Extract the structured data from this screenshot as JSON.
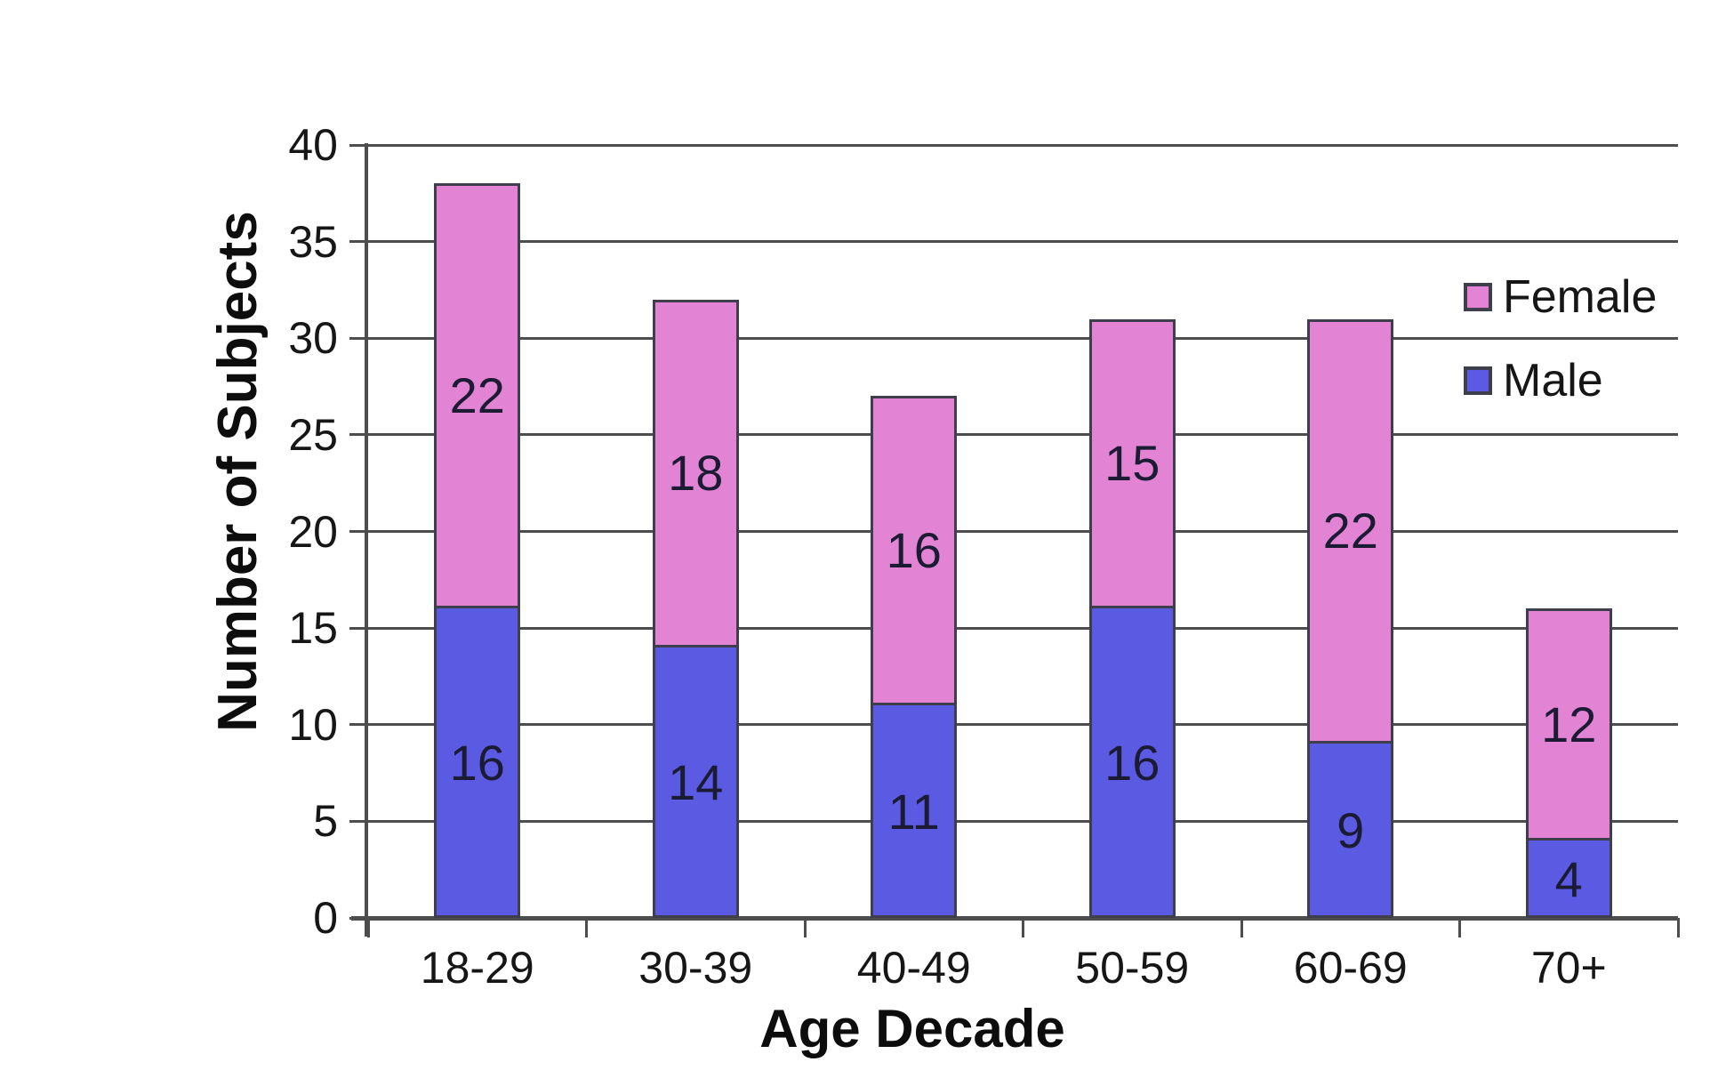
{
  "chart_data": {
    "type": "bar",
    "stacked": true,
    "title": "",
    "xlabel": "Age Decade",
    "ylabel": "Number of Subjects",
    "categories": [
      "18-29",
      "30-39",
      "40-49",
      "50-59",
      "60-69",
      "70+"
    ],
    "series": [
      {
        "name": "Female",
        "color": "#E283D3",
        "values": [
          22,
          18,
          16,
          15,
          22,
          12
        ]
      },
      {
        "name": "Male",
        "color": "#5A5AE2",
        "values": [
          16,
          14,
          11,
          16,
          9,
          4
        ]
      }
    ],
    "stack_order_bottom_to_top": [
      "Male",
      "Female"
    ],
    "totals": [
      38,
      32,
      27,
      31,
      31,
      16
    ],
    "ylim": [
      0,
      40
    ],
    "yticks": [
      0,
      5,
      10,
      15,
      20,
      25,
      30,
      35,
      40
    ],
    "grid": true,
    "legend_position": "upper-right-inside"
  },
  "colors": {
    "grid": "#4d4d4d",
    "axis": "#4d4d4d",
    "bar_border": "#3e3e4c",
    "segment_divider": "#4a2a55",
    "data_label": "#1b1b33",
    "text": "#161616",
    "background": "#ffffff"
  }
}
